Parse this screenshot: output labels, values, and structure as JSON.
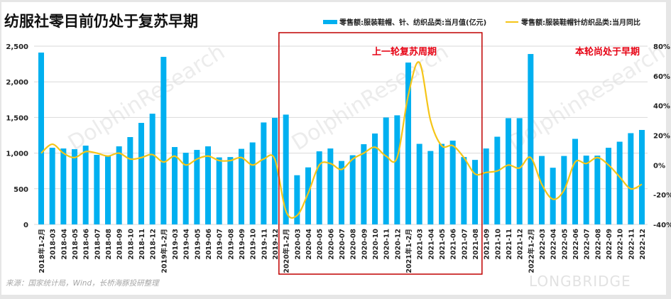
{
  "title": "纺服社零目前仍处于复苏早期",
  "legend": {
    "bar_label": "零售额:服装鞋帽、针、纺织品类:当月值(亿元)",
    "line_label": "零售额:服装鞋帽针纺织品类:当月同比"
  },
  "annotations": {
    "previous_cycle": "上一轮复苏周期",
    "current_cycle": "本轮尚处于早期"
  },
  "source": "来源：国家统计局，Wind，长桥海豚投研整理",
  "watermark": {
    "line1": "LONGBRIDGE",
    "line2": "DolphinResearch",
    "brand": "LONGBRIDGE"
  },
  "colors": {
    "bar": "#00b0f0",
    "line": "#f5c518",
    "highlight_box": "#c00000",
    "annotation": "#e60012",
    "grid": "#d9d9d9"
  },
  "chart_data": {
    "type": "bar",
    "title": "纺服社零目前仍处于复苏早期",
    "xlabel": "",
    "ylabel": "",
    "ylim": [
      0,
      2500
    ],
    "y2lim": [
      -40,
      80
    ],
    "y_ticks": [
      "0",
      "500",
      "1,000",
      "1,500",
      "2,000",
      "2,500"
    ],
    "y2_ticks": [
      "-40%",
      "-20%",
      "0%",
      "20%",
      "40%",
      "60%",
      "80%"
    ],
    "grid": true,
    "legend_position": "top-right",
    "categories": [
      "2018年1-2月",
      "2018-03",
      "2018-04",
      "2018-05",
      "2018-06",
      "2018-07",
      "2018-08",
      "2018-09",
      "2018-10",
      "2018-11",
      "2018-12",
      "2019年1-2月",
      "2019-03",
      "2019-04",
      "2019-05",
      "2019-06",
      "2019-07",
      "2019-08",
      "2019-09",
      "2019-10",
      "2019-11",
      "2019-12",
      "2020年1-2月",
      "2020-03",
      "2020-04",
      "2020-05",
      "2020-06",
      "2020-07",
      "2020-08",
      "2020-09",
      "2020-10",
      "2020-11",
      "2020-12",
      "2021年1-2月",
      "2021-03",
      "2021-04",
      "2021-05",
      "2021-06",
      "2021-07",
      "2021-08",
      "2021-09",
      "2021-10",
      "2021-11",
      "2021-12",
      "2022年1-2月",
      "2022-03",
      "2022-04",
      "2022-05",
      "2022-06",
      "2022-07",
      "2022-08",
      "2022-09",
      "2022-10",
      "2022-11",
      "2022-12"
    ],
    "series": [
      {
        "name": "零售额:服装鞋帽、针、纺织品类:当月值(亿元)",
        "type": "bar",
        "axis": "left",
        "values": [
          2410,
          1075,
          1065,
          1055,
          1105,
          976,
          956,
          1095,
          1225,
          1424,
          1553,
          2350,
          1085,
          1005,
          1045,
          1095,
          940,
          945,
          1060,
          1150,
          1430,
          1495,
          1540,
          690,
          800,
          1025,
          1065,
          890,
          970,
          1125,
          1275,
          1500,
          1530,
          2270,
          1130,
          1030,
          1130,
          1175,
          945,
          905,
          1065,
          1230,
          1490,
          1490,
          2390,
          960,
          795,
          960,
          1200,
          965,
          965,
          1075,
          1160,
          1280,
          1325
        ]
      },
      {
        "name": "零售额:服装鞋帽针纺织品类:当月同比",
        "type": "line",
        "axis": "right",
        "unit": "%",
        "values": [
          8,
          14,
          8,
          5,
          9,
          8,
          6,
          8,
          4,
          5,
          7,
          2,
          6,
          0,
          4,
          6,
          3,
          3,
          5,
          0,
          4,
          4,
          -31,
          -34,
          -19,
          0,
          1,
          -3,
          4,
          8,
          12,
          6,
          5,
          47,
          69,
          30,
          13,
          13,
          5,
          -6,
          -5,
          -4,
          0,
          -2,
          5,
          -13,
          -23,
          -17,
          2,
          1,
          5,
          0,
          -8,
          -16,
          -13
        ]
      }
    ],
    "highlight_region": {
      "label": "上一轮复苏周期",
      "from": "2020年1-2月",
      "to": "2021-08"
    }
  }
}
